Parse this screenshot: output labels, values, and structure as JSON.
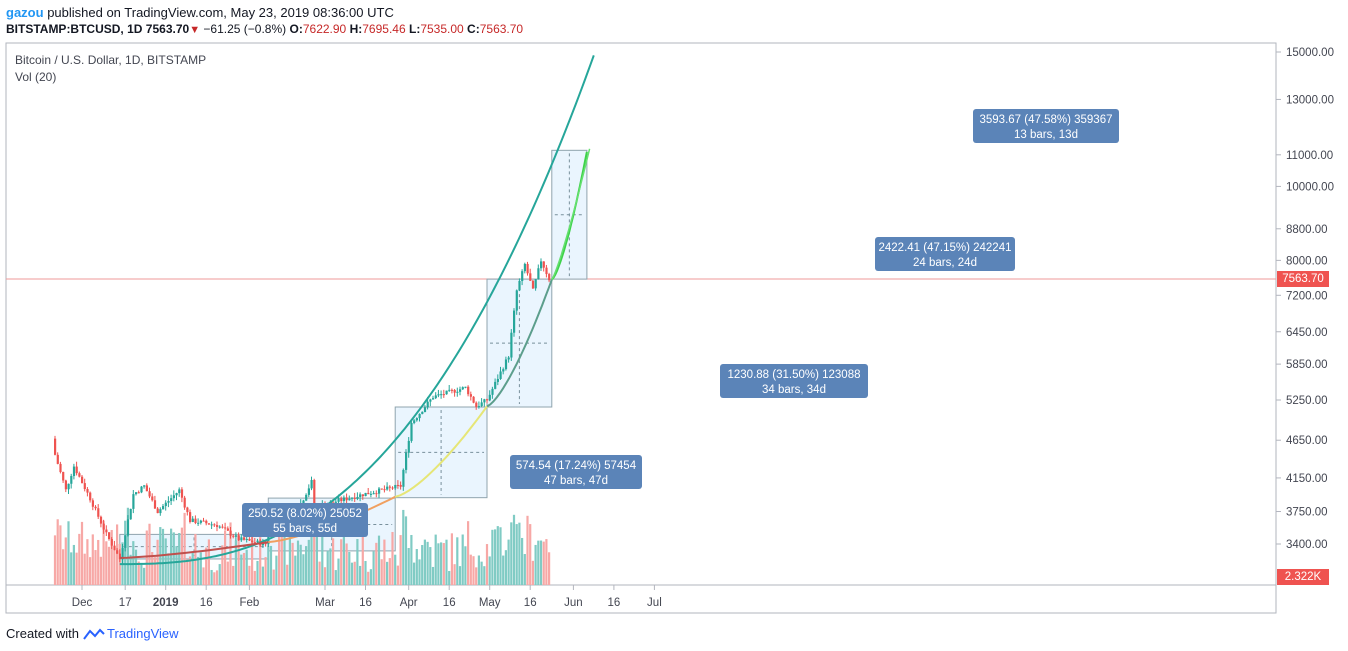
{
  "header": {
    "author": "gazou",
    "published": "published on TradingView.com, May 23, 2019 08:36:00 UTC",
    "symbol": "BITSTAMP:BTCUSD, 1D",
    "last": "7563.70",
    "change": "−61.25 (−0.8%)",
    "open_label": "O:",
    "open": "7622.90",
    "high_label": "H:",
    "high": "7695.46",
    "low_label": "L:",
    "low": "7535.00",
    "close_label": "C:",
    "close": "7563.70"
  },
  "legend": {
    "title": "Bitcoin / U.S. Dollar, 1D, BITSTAMP",
    "volume": "Vol (20)"
  },
  "price_tag": "7563.70",
  "volume_tag": "2.322K",
  "footer": {
    "created_with": "Created with",
    "brand": "TradingView"
  },
  "colors": {
    "up": "#26a69a",
    "down": "#ef5350",
    "up_vol": "#80cbc4",
    "down_vol": "#f7a8a6",
    "box_fill": "#e3f2fd",
    "label_bg": "#5b84b8"
  },
  "chart_data": {
    "type": "candlestick",
    "title": "Bitcoin / U.S. Dollar, 1D, BITSTAMP",
    "y_scale": "log",
    "y_ticks": [
      "15000.00",
      "13000.00",
      "11000.00",
      "10000.00",
      "8800.00",
      "8000.00",
      "7200.00",
      "6450.00",
      "5850.00",
      "5250.00",
      "4650.00",
      "4150.00",
      "3750.00",
      "3400.00"
    ],
    "x_ticks": [
      "Dec",
      "17",
      "2019",
      "16",
      "Feb",
      "Mar",
      "16",
      "Apr",
      "16",
      "May",
      "16",
      "Jun",
      "16",
      "Jul"
    ],
    "anchors": [
      {
        "date": "2018-11-21",
        "close": 4450
      },
      {
        "date": "2018-11-25",
        "close": 4000
      },
      {
        "date": "2018-11-28",
        "close": 4300
      },
      {
        "date": "2018-12-04",
        "close": 3900
      },
      {
        "date": "2018-12-10",
        "close": 3500
      },
      {
        "date": "2018-12-15",
        "close": 3250
      },
      {
        "date": "2018-12-20",
        "close": 3950
      },
      {
        "date": "2018-12-24",
        "close": 4050
      },
      {
        "date": "2018-12-29",
        "close": 3750
      },
      {
        "date": "2019-01-06",
        "close": 4000
      },
      {
        "date": "2019-01-10",
        "close": 3650
      },
      {
        "date": "2019-01-20",
        "close": 3600
      },
      {
        "date": "2019-01-28",
        "close": 3450
      },
      {
        "date": "2019-02-07",
        "close": 3400
      },
      {
        "date": "2019-02-09",
        "close": 3650
      },
      {
        "date": "2019-02-17",
        "close": 3650
      },
      {
        "date": "2019-02-24",
        "close": 4100
      },
      {
        "date": "2019-02-25",
        "close": 3800
      },
      {
        "date": "2019-03-15",
        "close": 3950
      },
      {
        "date": "2019-03-29",
        "close": 4050
      },
      {
        "date": "2019-04-02",
        "close": 4900
      },
      {
        "date": "2019-04-10",
        "close": 5300
      },
      {
        "date": "2019-04-22",
        "close": 5450
      },
      {
        "date": "2019-04-26",
        "close": 5150
      },
      {
        "date": "2019-04-30",
        "close": 5250
      },
      {
        "date": "2019-05-08",
        "close": 6000
      },
      {
        "date": "2019-05-11",
        "close": 7300
      },
      {
        "date": "2019-05-14",
        "close": 7900
      },
      {
        "date": "2019-05-17",
        "close": 7300
      },
      {
        "date": "2019-05-20",
        "close": 8000
      },
      {
        "date": "2019-05-23",
        "close": 7563.7
      }
    ],
    "current_price": 7563.7,
    "volume_last": "2.322K",
    "measurements": [
      {
        "text": "250.52 (8.02%) 25052",
        "text2": "55 bars, 55d",
        "from": "2018-12-15",
        "to": "2019-02-08",
        "p0": 3250,
        "p1": 3500
      },
      {
        "text": "574.54 (17.24%) 57454",
        "text2": "47 bars, 47d",
        "from": "2019-02-08",
        "to": "2019-03-27",
        "p0": 3330,
        "p1": 3905
      },
      {
        "text": "1230.88 (31.50%) 123088",
        "text2": "34 bars, 34d",
        "from": "2019-03-27",
        "to": "2019-04-30",
        "p0": 3910,
        "p1": 5140
      },
      {
        "text": "2422.41 (47.15%) 242241",
        "text2": "24 bars, 24d",
        "from": "2019-04-30",
        "to": "2019-05-24",
        "p0": 5140,
        "p1": 7560
      },
      {
        "text": "3593.67 (47.58%) 359367",
        "text2": "13 bars, 13d",
        "from": "2019-05-24",
        "to": "2019-06-06",
        "p0": 7560,
        "p1": 11150
      }
    ]
  }
}
